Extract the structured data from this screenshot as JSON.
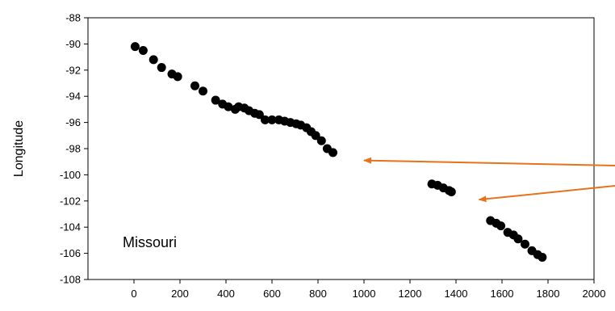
{
  "chart_data": {
    "type": "scatter",
    "title": "",
    "xlabel": "",
    "ylabel": "Longitude",
    "xlim": [
      -200,
      2000
    ],
    "ylim": [
      -108,
      -88
    ],
    "x_ticks": [
      0,
      200,
      400,
      600,
      800,
      1000,
      1200,
      1400,
      1600,
      1800,
      2000
    ],
    "y_ticks": [
      -108,
      -106,
      -104,
      -102,
      -100,
      -98,
      -96,
      -94,
      -92,
      -90,
      -88
    ],
    "grid": false,
    "annotation": "Missouri",
    "point_color": "#000000",
    "arrow_color": "#e8721c",
    "points": [
      [
        5,
        -90.2
      ],
      [
        40,
        -90.5
      ],
      [
        85,
        -91.2
      ],
      [
        120,
        -91.8
      ],
      [
        165,
        -92.3
      ],
      [
        190,
        -92.5
      ],
      [
        265,
        -93.2
      ],
      [
        300,
        -93.6
      ],
      [
        355,
        -94.3
      ],
      [
        385,
        -94.6
      ],
      [
        410,
        -94.8
      ],
      [
        440,
        -95.0
      ],
      [
        455,
        -94.8
      ],
      [
        480,
        -94.9
      ],
      [
        500,
        -95.1
      ],
      [
        525,
        -95.3
      ],
      [
        545,
        -95.4
      ],
      [
        570,
        -95.8
      ],
      [
        600,
        -95.8
      ],
      [
        630,
        -95.8
      ],
      [
        655,
        -95.9
      ],
      [
        680,
        -96.0
      ],
      [
        705,
        -96.1
      ],
      [
        725,
        -96.2
      ],
      [
        750,
        -96.4
      ],
      [
        770,
        -96.7
      ],
      [
        790,
        -97.0
      ],
      [
        815,
        -97.4
      ],
      [
        840,
        -98.0
      ],
      [
        865,
        -98.3
      ],
      [
        1295,
        -100.7
      ],
      [
        1320,
        -100.8
      ],
      [
        1345,
        -101.0
      ],
      [
        1370,
        -101.2
      ],
      [
        1380,
        -101.3
      ],
      [
        1550,
        -103.5
      ],
      [
        1575,
        -103.7
      ],
      [
        1595,
        -103.9
      ],
      [
        1625,
        -104.4
      ],
      [
        1650,
        -104.6
      ],
      [
        1670,
        -104.9
      ],
      [
        1700,
        -105.3
      ],
      [
        1730,
        -105.8
      ],
      [
        1755,
        -106.1
      ],
      [
        1775,
        -106.3
      ]
    ],
    "arrows": [
      {
        "to": [
          1000,
          -98.9
        ]
      },
      {
        "to": [
          1500,
          -101.9
        ]
      }
    ]
  }
}
